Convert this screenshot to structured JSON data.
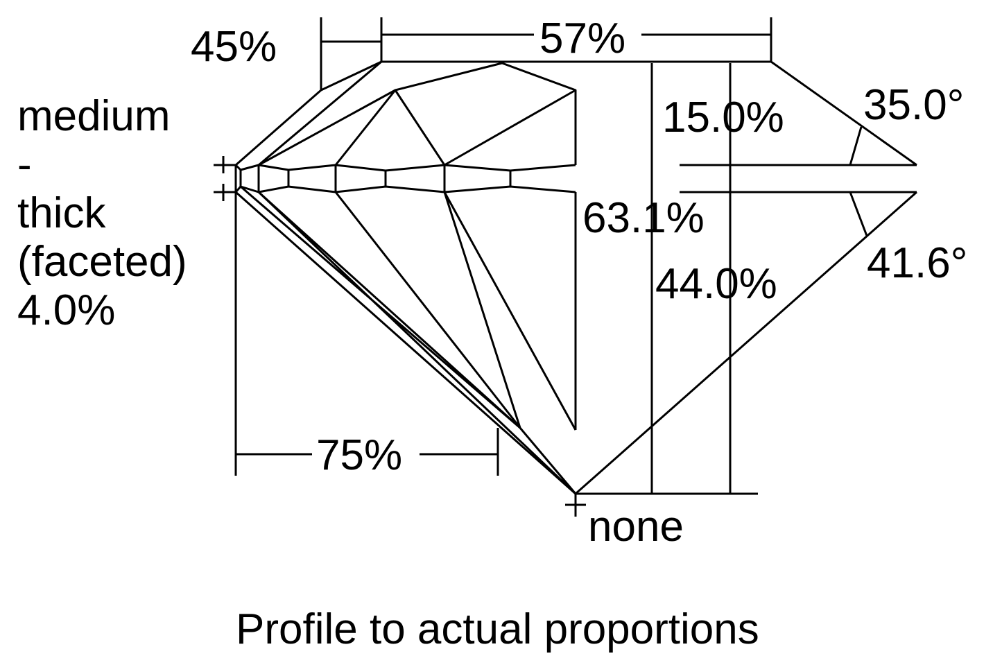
{
  "labels": {
    "crown_height_pct": "45%",
    "table_pct": "57%",
    "girdle_line1": "medium",
    "girdle_line2": "-",
    "girdle_line3": "thick",
    "girdle_line4": "(faceted)",
    "girdle_line5": "4.0%",
    "crown_depth_pct": "15.0%",
    "crown_angle": "35.0°",
    "total_depth_pct": "63.1%",
    "pavilion_angle": "41.6°",
    "pavilion_depth_pct": "44.0%",
    "lower_half_pct": "75%",
    "culet": "none"
  },
  "caption": "Profile to actual proportions",
  "colors": {
    "line": "#000000",
    "background": "#ffffff"
  }
}
